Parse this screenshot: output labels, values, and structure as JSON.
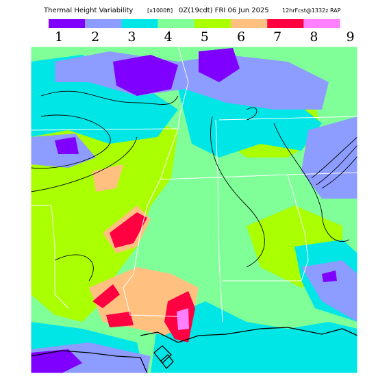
{
  "header": {
    "title": "Thermal Height Variability",
    "units": "[x1000ft]",
    "valid": "0Z(19cdt) FRI 06 Jun 2025",
    "model": "12hrFcst@1332z RAP"
  },
  "legend": {
    "labels": [
      "1",
      "2",
      "3",
      "4",
      "5",
      "6",
      "7",
      "8",
      "9"
    ],
    "colors": [
      "#8000ff",
      "#8c9cff",
      "#00e6e6",
      "#80ff99",
      "#aaff00",
      "#ffc080",
      "#ff0040",
      "#ff80ff"
    ]
  }
}
